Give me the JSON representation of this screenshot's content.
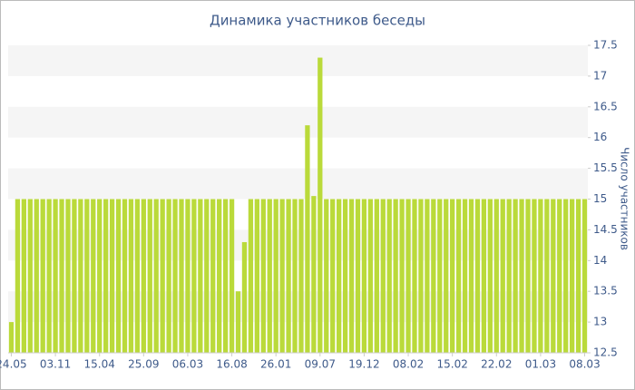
{
  "chart_data": {
    "type": "bar",
    "title": "Динамика участников беседы",
    "y_label": "Число участников",
    "categories": [
      "24.05",
      null,
      null,
      null,
      null,
      null,
      null,
      "03.11",
      null,
      null,
      null,
      null,
      null,
      null,
      "15.04",
      null,
      null,
      null,
      null,
      null,
      null,
      "25.09",
      null,
      null,
      null,
      null,
      null,
      null,
      "06.03",
      null,
      null,
      null,
      null,
      null,
      null,
      "16.08",
      null,
      null,
      null,
      null,
      null,
      null,
      "26.01",
      null,
      null,
      null,
      null,
      null,
      null,
      "09.07",
      null,
      null,
      null,
      null,
      null,
      null,
      "19.12",
      null,
      null,
      null,
      null,
      null,
      null,
      "08.02",
      null,
      null,
      null,
      null,
      null,
      null,
      "15.02",
      null,
      null,
      null,
      null,
      null,
      null,
      "22.02",
      null,
      null,
      null,
      null,
      null,
      null,
      "01.03",
      null,
      null,
      null,
      null,
      null,
      null,
      "08.03"
    ],
    "values": [
      13,
      15,
      15,
      15,
      15,
      15,
      15,
      15,
      15,
      15,
      15,
      15,
      15,
      15,
      15,
      15,
      15,
      15,
      15,
      15,
      15,
      15,
      15,
      15,
      15,
      15,
      15,
      15,
      15,
      15,
      15,
      15,
      15,
      15,
      15,
      15,
      13.5,
      14.3,
      15,
      15,
      15,
      15,
      15,
      15,
      15,
      15,
      15,
      16.2,
      15.05,
      17.3,
      15,
      15,
      15,
      15,
      15,
      15,
      15,
      15,
      15,
      15,
      15,
      15,
      15,
      15,
      15,
      15,
      15,
      15,
      15,
      15,
      15,
      15,
      15,
      15,
      15,
      15,
      15,
      15,
      15,
      15,
      15,
      15,
      15,
      15,
      15,
      15,
      15,
      15,
      15,
      15,
      15,
      15
    ],
    "color": "#bada3a",
    "ylim": [
      12.5,
      17.5
    ],
    "yticks": [
      12.5,
      13,
      13.5,
      14,
      14.5,
      15,
      15.5,
      16,
      16.5,
      17,
      17.5
    ],
    "grid": "bands",
    "y_axis_side": "right"
  }
}
